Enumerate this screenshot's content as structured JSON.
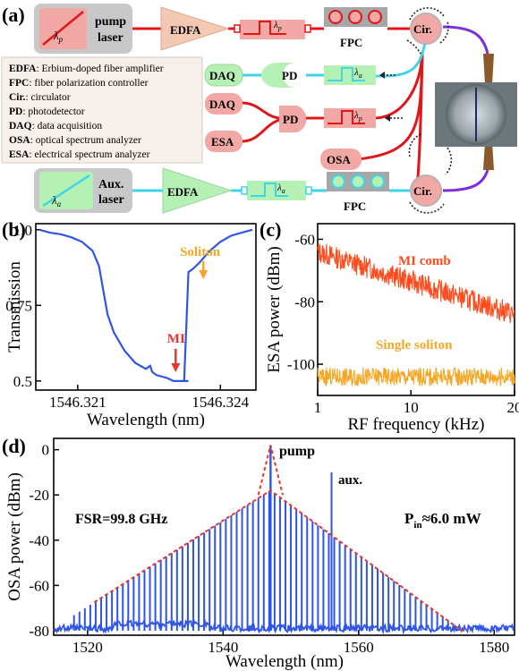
{
  "panel_a": {
    "label": "(a)",
    "pump_laser": "pump\nlaser",
    "lambda_p": "λ",
    "lambda_p_sub": "p",
    "lambda_a_sub": "a",
    "edfa": "EDFA",
    "fpc": "FPC",
    "cir": "Cir.",
    "daq": "DAQ",
    "pd": "PD",
    "esa": "ESA",
    "osa": "OSA",
    "aux_laser": "Aux.\nlaser",
    "legend": [
      {
        "key": "EDFA",
        "desc": ": Erbium-doped fiber amplifier"
      },
      {
        "key": "FPC",
        "desc": ": fiber polarization controller"
      },
      {
        "key": "Cir.",
        "desc": ": circulator"
      },
      {
        "key": "PD",
        "desc": ": photodetector"
      },
      {
        "key": "DAQ",
        "desc": ": data acquisition"
      },
      {
        "key": "OSA",
        "desc": ": optical spectrum analyzer"
      },
      {
        "key": "ESA",
        "desc": ": electrical spectrum analyzer"
      }
    ],
    "colors": {
      "pump": "#e0161b",
      "aux": "#3fd4e6",
      "box_pink": "#f2a8a5",
      "box_green": "#b5f0b5",
      "edfa": "#f5c8b4",
      "fpc_gray": "#a7a7a7",
      "loop_purple": "#7a30d6",
      "taper": "#8b5a2b"
    }
  },
  "chart_data": [
    {
      "panel": "(b)",
      "type": "line",
      "xlabel": "Wavelength (nm)",
      "ylabel": "Transmission",
      "x_ticks": [
        "1546.321",
        "1546.324"
      ],
      "y_ticks": [
        "0.5",
        "0.75",
        "1.0"
      ],
      "ylim": [
        0.47,
        1.02
      ],
      "color": "#2e55e8",
      "annotations": [
        {
          "text": "Soliton",
          "color": "#f5a623"
        },
        {
          "text": "MI",
          "color": "#e8362d"
        }
      ],
      "x": [
        0.0,
        0.05,
        0.1,
        0.15,
        0.2,
        0.25,
        0.28,
        0.3,
        0.32,
        0.35,
        0.4,
        0.45,
        0.5,
        0.52,
        0.53,
        0.55,
        0.6,
        0.63,
        0.65,
        0.68,
        0.7,
        0.72,
        0.75,
        0.8,
        0.85,
        0.9,
        0.95,
        1.0
      ],
      "y": [
        1.0,
        0.99,
        0.985,
        0.975,
        0.96,
        0.93,
        0.88,
        0.8,
        0.72,
        0.66,
        0.6,
        0.56,
        0.54,
        0.55,
        0.53,
        0.52,
        0.51,
        0.5,
        0.5,
        0.5,
        0.86,
        0.87,
        0.89,
        0.93,
        0.96,
        0.98,
        0.99,
        1.0
      ]
    },
    {
      "panel": "(c)",
      "type": "line",
      "xlabel": "RF frequency (kHz)",
      "ylabel": "ESA power (dBm)",
      "x_ticks": [
        "1",
        "10",
        "20"
      ],
      "y_ticks": [
        "-60",
        "-80",
        "-100"
      ],
      "ylim": [
        -110,
        -55
      ],
      "xlim": [
        1,
        20
      ],
      "series": [
        {
          "name": "MI comb",
          "color": "#ff4a1c",
          "start": -64,
          "end": -84
        },
        {
          "name": "Single soliton",
          "color": "#f5a623",
          "start": -104,
          "end": -104
        }
      ]
    },
    {
      "panel": "(d)",
      "type": "bar",
      "xlabel": "Wavelength (nm)",
      "ylabel": "OSA power (dBm)",
      "x_ticks": [
        "1520",
        "1540",
        "1560",
        "1580"
      ],
      "y_ticks": [
        "0",
        "-20",
        "-40",
        "-60",
        "-80"
      ],
      "xlim": [
        1515,
        1583
      ],
      "ylim": [
        -82,
        5
      ],
      "fsr_label": "FSR=99.8 GHz",
      "pin_label": "P",
      "pin_sub": "in",
      "pin_value": "≈6.0 mW",
      "pump_label": "pump",
      "aux_label": "aux.",
      "pump_wavelength": 1547,
      "aux_wavelength": 1556,
      "line_color": "#2e55e8",
      "envelope_color": "#e8362d"
    }
  ],
  "panel_b_label": "(b)",
  "panel_c_label": "(c)",
  "panel_d_label": "(d)"
}
